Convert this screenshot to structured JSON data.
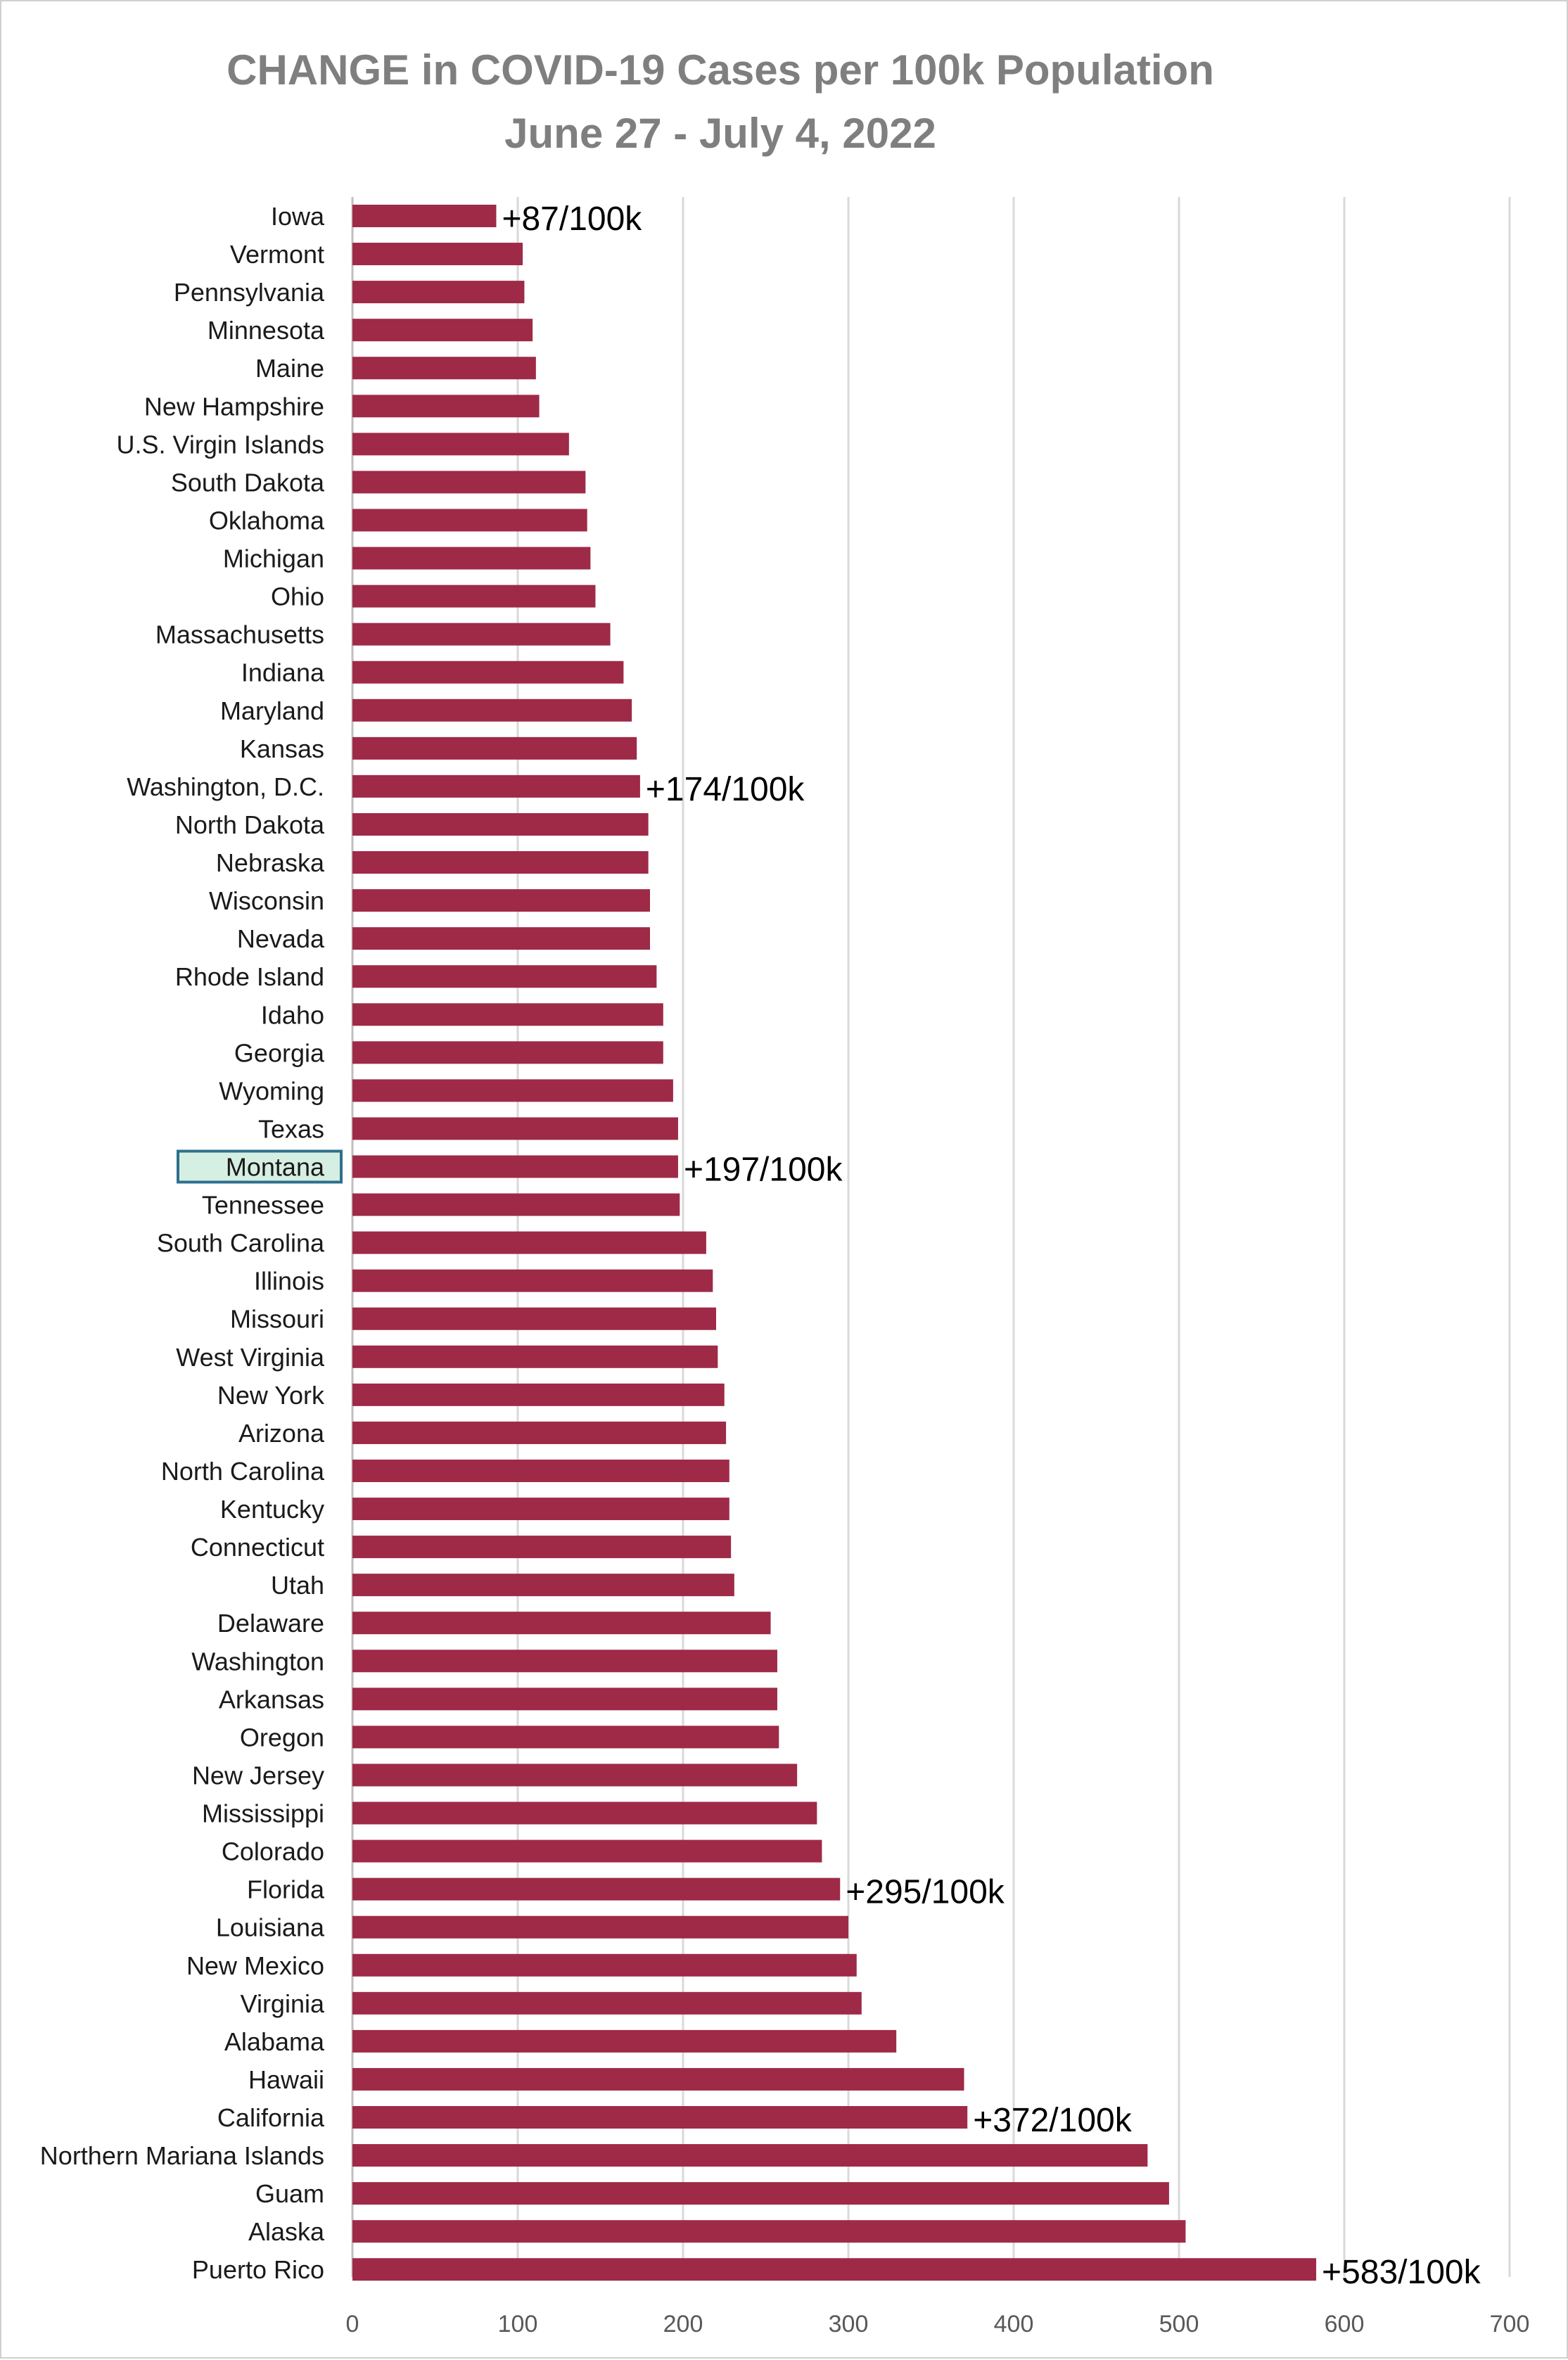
{
  "chart_data": {
    "type": "bar",
    "orientation": "horizontal",
    "title": "CHANGE in COVID-19 Cases per 100k Population",
    "subtitle": "June 27 - July 4, 2022",
    "xlabel": "",
    "ylabel": "",
    "xlim": [
      0,
      700
    ],
    "xticks": [
      0,
      100,
      200,
      300,
      400,
      500,
      600,
      700
    ],
    "grid": true,
    "legend": "none",
    "bar_color": "#9e2a47",
    "highlight": {
      "category": "Montana",
      "fill": "#d6efe3",
      "stroke": "#2e6f8e"
    },
    "categories": [
      "Iowa",
      "Vermont",
      "Pennsylvania",
      "Minnesota",
      "Maine",
      "New Hampshire",
      "U.S. Virgin Islands",
      "South Dakota",
      "Oklahoma",
      "Michigan",
      "Ohio",
      "Massachusetts",
      "Indiana",
      "Maryland",
      "Kansas",
      "Washington, D.C.",
      "North Dakota",
      "Nebraska",
      "Wisconsin",
      "Nevada",
      "Rhode Island",
      "Idaho",
      "Georgia",
      "Wyoming",
      "Texas",
      "Montana",
      "Tennessee",
      "South Carolina",
      "Illinois",
      "Missouri",
      "West Virginia",
      "New York",
      "Arizona",
      "North Carolina",
      "Kentucky",
      "Connecticut",
      "Utah",
      "Delaware",
      "Washington",
      "Arkansas",
      "Oregon",
      "New Jersey",
      "Mississippi",
      "Colorado",
      "Florida",
      "Louisiana",
      "New Mexico",
      "Virginia",
      "Alabama",
      "Hawaii",
      "California",
      "Northern Mariana Islands",
      "Guam",
      "Alaska",
      "Puerto Rico"
    ],
    "values": [
      87,
      103,
      104,
      109,
      111,
      113,
      131,
      141,
      142,
      144,
      147,
      156,
      164,
      169,
      172,
      174,
      179,
      179,
      180,
      180,
      184,
      188,
      188,
      194,
      197,
      197,
      198,
      214,
      218,
      220,
      221,
      225,
      226,
      228,
      228,
      229,
      231,
      253,
      257,
      257,
      258,
      269,
      281,
      284,
      295,
      300,
      305,
      308,
      329,
      370,
      372,
      481,
      494,
      504,
      583
    ],
    "annotations": [
      {
        "category": "Iowa",
        "text": "+87/100k"
      },
      {
        "category": "Washington, D.C.",
        "text": "+174/100k"
      },
      {
        "category": "Montana",
        "text": "+197/100k"
      },
      {
        "category": "Florida",
        "text": "+295/100k"
      },
      {
        "category": "California",
        "text": "+372/100k"
      },
      {
        "category": "Puerto Rico",
        "text": "+583/100k"
      }
    ]
  }
}
